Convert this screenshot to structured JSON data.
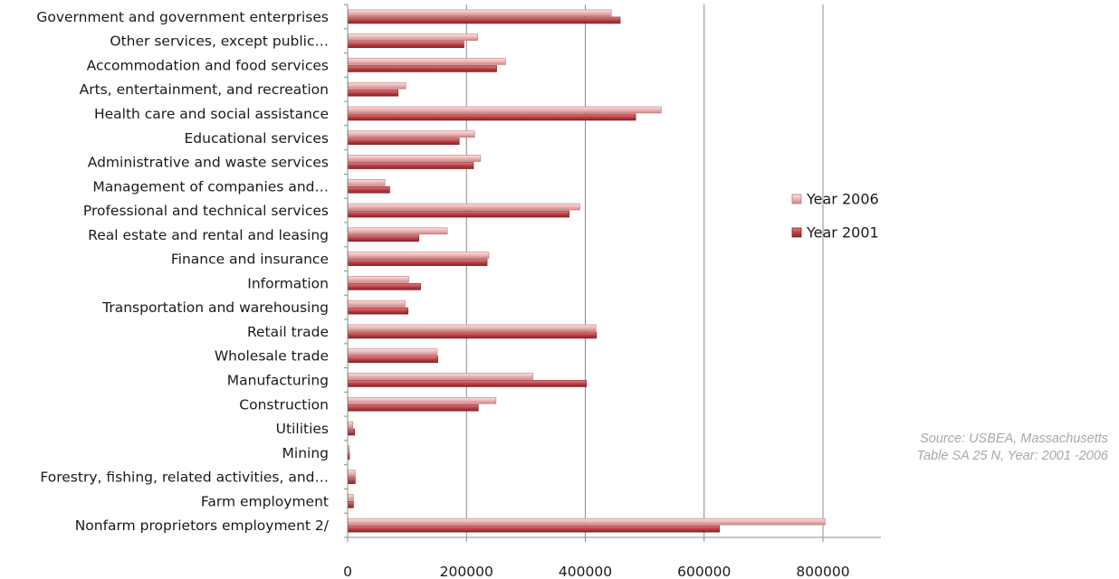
{
  "chart_data": {
    "type": "bar",
    "orientation": "horizontal",
    "categories": [
      "Government and government enterprises",
      "Other services, except public…",
      "Accommodation and food services",
      "Arts, entertainment, and recreation",
      "Health care and social assistance",
      "Educational services",
      "Administrative and waste services",
      "Management of companies and…",
      "Professional and technical services",
      "Real estate and rental and leasing",
      "Finance and insurance",
      "Information",
      "Transportation and warehousing",
      "Retail trade",
      "Wholesale trade",
      "Manufacturing",
      "Construction",
      "Utilities",
      "Mining",
      "Forestry, fishing, related activities, and…",
      "Farm employment",
      "Nonfarm proprietors employment 2/"
    ],
    "series": [
      {
        "name": "Year 2006",
        "color": "#f2b8b8",
        "values": [
          443000,
          218000,
          265000,
          97000,
          527000,
          213000,
          223000,
          62000,
          390000,
          167000,
          237000,
          102000,
          96000,
          417000,
          150000,
          311000,
          249000,
          8000,
          1000,
          12000,
          9000,
          803000
        ]
      },
      {
        "name": "Year 2001",
        "color": "#c0454a",
        "values": [
          458000,
          195000,
          250000,
          84000,
          484000,
          187000,
          211000,
          70000,
          372000,
          119000,
          234000,
          122000,
          101000,
          418000,
          151000,
          401000,
          219000,
          11000,
          1000,
          12000,
          9000,
          625000
        ]
      }
    ],
    "xlim": [
      0,
      800000
    ],
    "xticks": [
      "0",
      "200000",
      "400000",
      "600000",
      "800000"
    ],
    "grid": true,
    "legend_position": "right",
    "title": "",
    "xlabel": "",
    "ylabel": ""
  },
  "source_note": {
    "line1": "Source: USBEA, Massachusetts",
    "line2": "Table SA 25 N, Year: 2001 -2006"
  }
}
